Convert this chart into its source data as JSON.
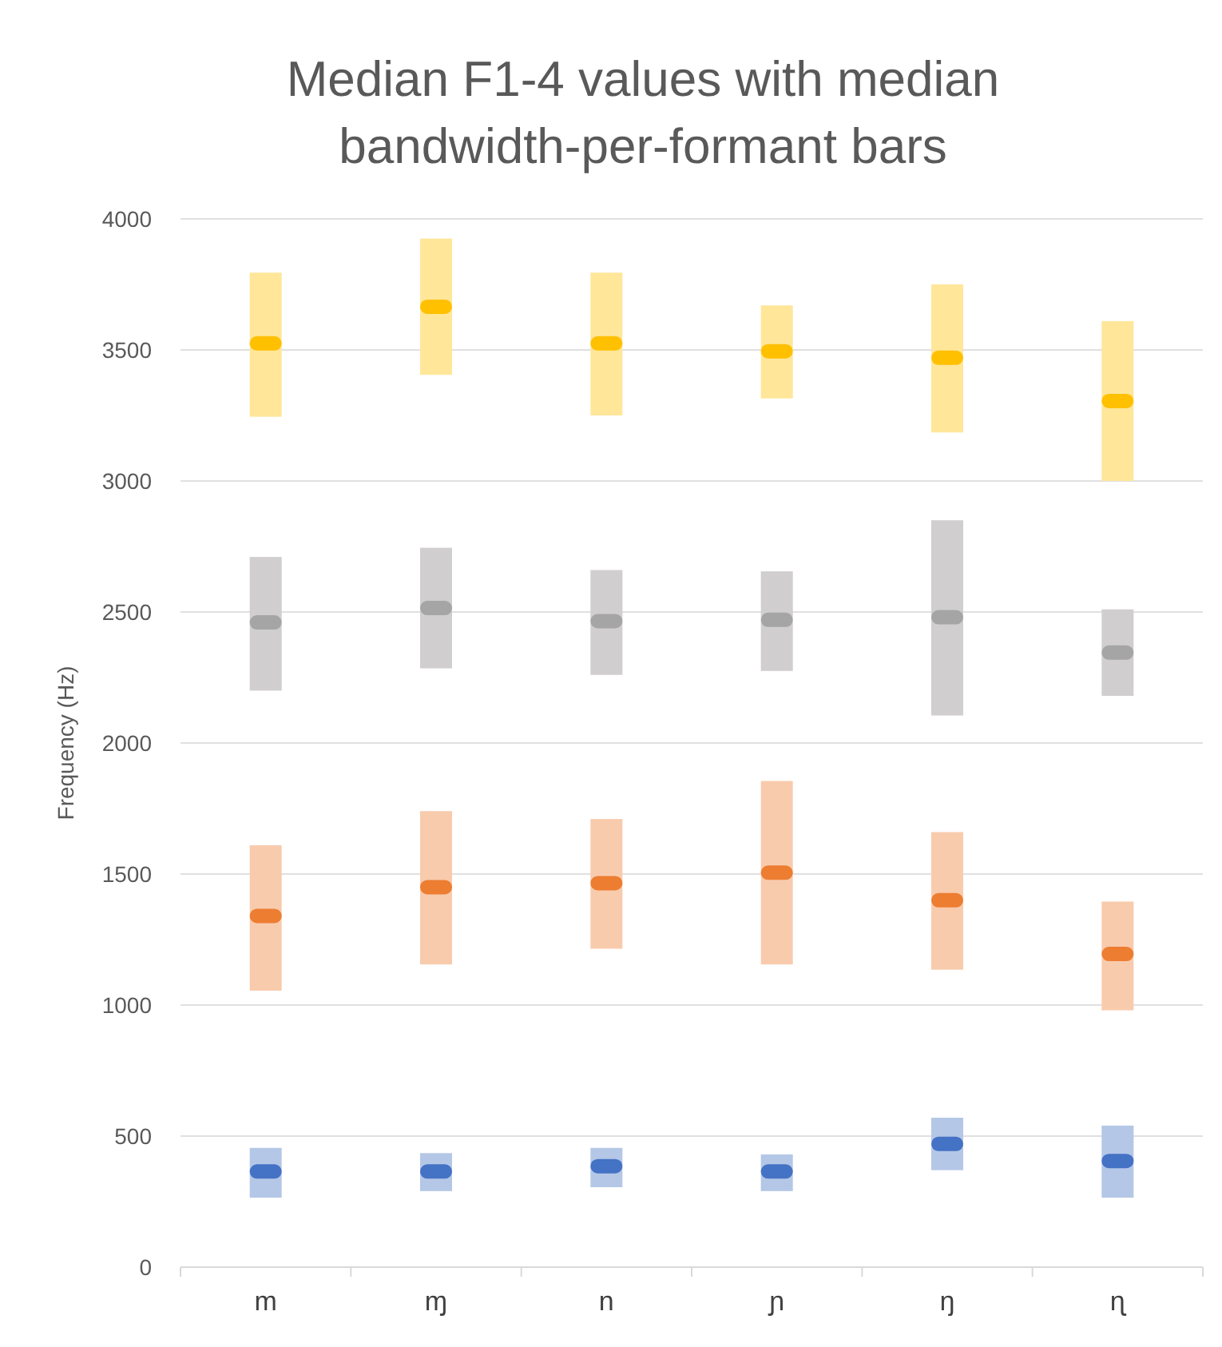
{
  "chart_data": {
    "type": "bar",
    "title": "Median F1-4 values with median bandwidth-per-formant bars",
    "ylabel": "Frequency (Hz)",
    "categories": [
      "m",
      "ɱ",
      "n",
      "ɲ",
      "ŋ",
      "ɳ"
    ],
    "series": [
      {
        "color": "#b4c7e7",
        "base": [
          265,
          290,
          305,
          290,
          370,
          265
        ],
        "values": [
          190,
          145,
          150,
          140,
          200,
          275
        ]
      },
      {
        "color": "#f8cbad",
        "base": [
          1055,
          1155,
          1215,
          1155,
          1135,
          980
        ],
        "values": [
          555,
          585,
          495,
          700,
          525,
          415
        ]
      },
      {
        "color": "#d0cece",
        "base": [
          2200,
          2285,
          2260,
          2275,
          2105,
          2180
        ],
        "values": [
          510,
          460,
          400,
          380,
          745,
          330
        ]
      },
      {
        "color": "#ffe699",
        "base": [
          3245,
          3405,
          3250,
          3315,
          3185,
          3000
        ],
        "values": [
          550,
          520,
          545,
          355,
          565,
          610
        ]
      },
      {
        "type": "scatter",
        "color": "#4472c4",
        "x": [
          "m",
          "ɱ",
          "n",
          "ɲ",
          "ŋ",
          "ɳ"
        ],
        "values": [
          365,
          365,
          385,
          365,
          470,
          405
        ]
      },
      {
        "type": "scatter",
        "color": "#ed7d31",
        "x": [
          "m",
          "ɱ",
          "n",
          "ɲ",
          "ŋ",
          "ɳ"
        ],
        "values": [
          1340,
          1450,
          1465,
          1505,
          1400,
          1195
        ]
      },
      {
        "type": "scatter",
        "color": "#a5a5a5",
        "x": [
          "m",
          "ɱ",
          "n",
          "ɲ",
          "ŋ",
          "ɳ"
        ],
        "values": [
          2460,
          2515,
          2465,
          2470,
          2480,
          2345
        ]
      },
      {
        "type": "scatter",
        "color": "#ffc000",
        "x": [
          "m",
          "ɱ",
          "n",
          "ɲ",
          "ŋ",
          "ɳ"
        ],
        "values": [
          3525,
          3665,
          3525,
          3495,
          3470,
          3305
        ]
      }
    ],
    "marker": "square",
    "ylim": [
      0,
      4000
    ],
    "yticks": [
      0,
      500,
      1000,
      1500,
      2000,
      2500,
      3000,
      3500,
      4000
    ],
    "grid": "y"
  }
}
